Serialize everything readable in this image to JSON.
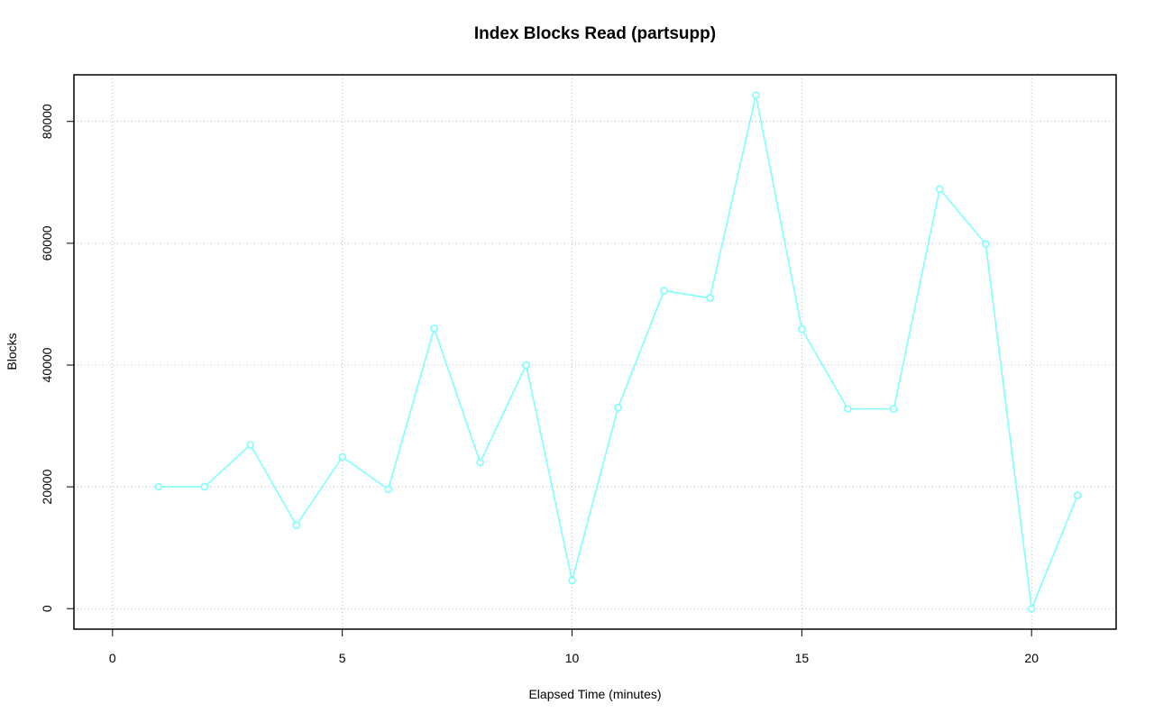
{
  "chart_data": {
    "type": "line",
    "title": "Index Blocks Read (partsupp)",
    "x_label": "Elapsed Time (minutes)",
    "y_label": "Blocks",
    "x": [
      1,
      2,
      3,
      4,
      5,
      6,
      7,
      8,
      9,
      10,
      11,
      12,
      13,
      14,
      15,
      16,
      17,
      18,
      19,
      20,
      21
    ],
    "series": [
      {
        "name": "partsupp",
        "color": "#7fffff",
        "values": [
          20000,
          20000,
          26900,
          13700,
          24900,
          19600,
          46000,
          24000,
          40000,
          4600,
          33000,
          52200,
          51000,
          84300,
          45900,
          32800,
          32800,
          68900,
          59900,
          0,
          18600
        ]
      }
    ],
    "xlim": [
      -0.84,
      21.84
    ],
    "xticks": [
      0,
      5,
      10,
      15,
      20
    ],
    "ylim": [
      -3370,
      87660
    ],
    "yticks": [
      0,
      20000,
      40000,
      60000,
      80000
    ],
    "grid": true
  }
}
